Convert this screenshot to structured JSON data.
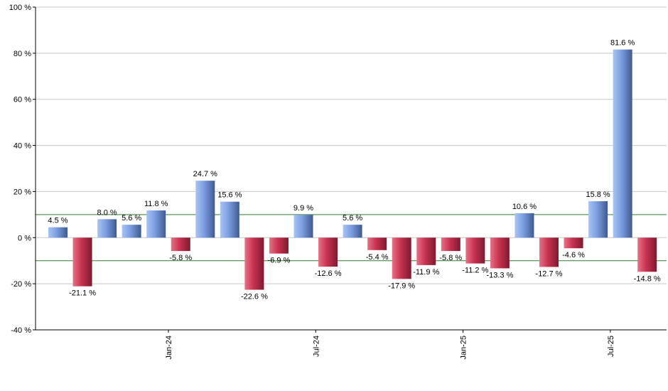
{
  "chart_data": {
    "type": "bar",
    "title": "",
    "xlabel": "",
    "ylabel": "",
    "ylim": [
      -40,
      100
    ],
    "ytick_step": 20,
    "y_tick_suffix": " %",
    "grid": true,
    "reference_lines": [
      10,
      -10
    ],
    "x_tick_labels": [
      {
        "label": "Jan-24",
        "at_index": 4.5
      },
      {
        "label": "Jul-24",
        "at_index": 10.5
      },
      {
        "label": "Jan-25",
        "at_index": 16.5
      },
      {
        "label": "Jul-25",
        "at_index": 22.5
      }
    ],
    "values": [
      4.5,
      -21.1,
      8.0,
      5.6,
      11.8,
      -5.8,
      24.7,
      15.6,
      -22.6,
      -6.9,
      9.9,
      -12.6,
      5.6,
      -5.4,
      -17.9,
      -11.9,
      -5.8,
      -11.2,
      -13.3,
      10.6,
      -12.7,
      -4.6,
      15.8,
      81.6,
      -14.8
    ],
    "data_labels": [
      "4.5 %",
      "-21.1 %",
      "8.0 %",
      "5.6 %",
      "11.8 %",
      "-5.8 %",
      "24.7 %",
      "15.6 %",
      "-22.6 %",
      "-6.9 %",
      "9.9 %",
      "-12.6 %",
      "5.6 %",
      "-5.4 %",
      "-17.9 %",
      "-11.9 %",
      "-5.8 %",
      "-11.2 %",
      "-13.3 %",
      "10.6 %",
      "-12.7 %",
      "-4.6 %",
      "15.8 %",
      "81.6 %",
      "-14.8 %"
    ],
    "colors": {
      "positive_light": "#a9c4f5",
      "positive_mid": "#7a9ce0",
      "positive_dark": "#3e5a8f",
      "negative_light": "#e87088",
      "negative_mid": "#c8324f",
      "negative_dark": "#7d1a30",
      "grid": "#c8c8c8",
      "reference_line": "#2e7d32",
      "axis": "#000000"
    }
  }
}
